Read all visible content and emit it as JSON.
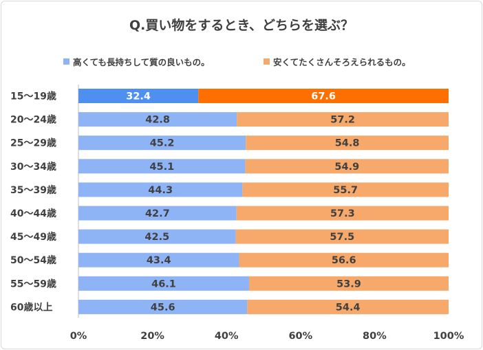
{
  "chart_data": {
    "type": "bar",
    "orientation": "horizontal-stacked-100",
    "title": "Q.買い物をするとき、どちらを選ぶ？",
    "categories": [
      "15〜19歳",
      "20〜24歳",
      "25〜29歳",
      "30〜34歳",
      "35〜39歳",
      "40〜44歳",
      "45〜49歳",
      "50〜54歳",
      "55〜59歳",
      "60歳以上"
    ],
    "series": [
      {
        "name": "高くても長持ちして質の良いもの。",
        "values": [
          32.4,
          42.8,
          45.2,
          45.1,
          44.3,
          42.7,
          42.5,
          43.4,
          46.1,
          45.6
        ]
      },
      {
        "name": "安くてたくさんそろえられるもの。",
        "values": [
          67.6,
          57.2,
          54.8,
          54.9,
          55.7,
          57.3,
          57.5,
          56.6,
          53.9,
          54.4
        ]
      }
    ],
    "x_ticks": [
      "0%",
      "20%",
      "40%",
      "60%",
      "80%",
      "100%"
    ],
    "xlim": [
      0,
      100
    ],
    "legend": "top",
    "grid": false,
    "highlight_row": 0,
    "colors": {
      "series1": "#8eb4f6",
      "series2": "#f6a96b",
      "series1_highlight": "#4f8ff0",
      "series2_highlight": "#ff6f00"
    }
  }
}
